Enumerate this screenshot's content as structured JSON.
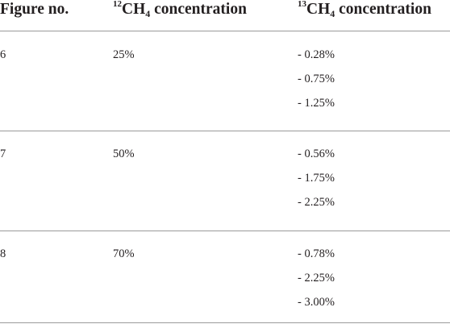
{
  "table": {
    "headers": {
      "figure_no": "Figure no.",
      "c12_sup": "12",
      "c12_base": "CH",
      "c12_sub": "4",
      "c12_suffix": " concentration",
      "c13_sup": "13",
      "c13_base": "CH",
      "c13_sub": "4",
      "c13_suffix": " concentration"
    },
    "rows": [
      {
        "figure": "6",
        "c12": "25%",
        "c13": [
          "- 0.28%",
          "- 0.75%",
          "- 1.25%"
        ]
      },
      {
        "figure": "7",
        "c12": "50%",
        "c13": [
          "- 0.56%",
          "- 1.75%",
          "- 2.25%"
        ]
      },
      {
        "figure": "8",
        "c12": "70%",
        "c13": [
          "- 0.78%",
          "- 2.25%",
          "- 3.00%"
        ]
      }
    ]
  }
}
